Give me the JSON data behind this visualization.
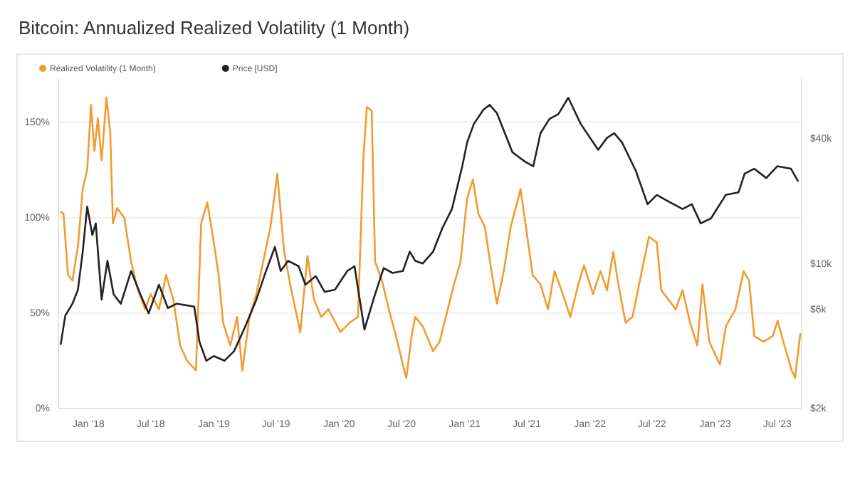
{
  "chart_data": {
    "type": "line",
    "title": "Bitcoin: Annualized Realized Volatility (1 Month)",
    "xlim": [
      "2017-10-05",
      "2023-09-10"
    ],
    "xticks": [
      {
        "value": "2018-01-01",
        "label": "Jan '18"
      },
      {
        "value": "2018-07-01",
        "label": "Jul '18"
      },
      {
        "value": "2019-01-01",
        "label": "Jan '19"
      },
      {
        "value": "2019-07-01",
        "label": "Jul '19"
      },
      {
        "value": "2020-01-01",
        "label": "Jan '20"
      },
      {
        "value": "2020-07-01",
        "label": "Jul '20"
      },
      {
        "value": "2021-01-01",
        "label": "Jan '21"
      },
      {
        "value": "2021-07-01",
        "label": "Jul '21"
      },
      {
        "value": "2022-01-01",
        "label": "Jan '22"
      },
      {
        "value": "2022-07-01",
        "label": "Jul '22"
      },
      {
        "value": "2023-01-01",
        "label": "Jan '23"
      },
      {
        "value": "2023-07-01",
        "label": "Jul '23"
      }
    ],
    "ylim": [
      0,
      173
    ],
    "yticks": [
      {
        "value": 0,
        "label": "0%"
      },
      {
        "value": 50,
        "label": "50%"
      },
      {
        "value": 100,
        "label": "100%"
      },
      {
        "value": 150,
        "label": "150%"
      }
    ],
    "y2lim": [
      2000,
      78000
    ],
    "y2ticks": [
      {
        "value": 2000,
        "label": "$2k"
      },
      {
        "value": 6000,
        "label": "$6k"
      },
      {
        "value": 10000,
        "label": "$10k"
      },
      {
        "value": 40000,
        "label": "$40k"
      }
    ],
    "log": "y2",
    "grid": "y",
    "legend": "top left",
    "line_style": "solid",
    "marker": "none",
    "series": [
      {
        "name": "Realized Volatility (1 Month)",
        "color": "#f29b30",
        "x": [
          "2017-10-12",
          "2017-10-20",
          "2017-11-02",
          "2017-11-15",
          "2017-12-01",
          "2017-12-15",
          "2017-12-28",
          "2018-01-08",
          "2018-01-18",
          "2018-01-28",
          "2018-02-08",
          "2018-02-22",
          "2018-03-05",
          "2018-03-13",
          "2018-03-25",
          "2018-04-15",
          "2018-05-05",
          "2018-05-25",
          "2018-06-15",
          "2018-07-01",
          "2018-07-25",
          "2018-08-15",
          "2018-09-05",
          "2018-09-25",
          "2018-10-15",
          "2018-11-10",
          "2018-11-25",
          "2018-12-13",
          "2019-01-01",
          "2019-01-15",
          "2019-01-28",
          "2019-02-18",
          "2019-03-10",
          "2019-03-25",
          "2019-04-15",
          "2019-05-05",
          "2019-05-25",
          "2019-06-15",
          "2019-07-05",
          "2019-07-25",
          "2019-08-15",
          "2019-09-10",
          "2019-10-01",
          "2019-10-20",
          "2019-11-10",
          "2019-12-01",
          "2020-01-05",
          "2020-02-01",
          "2020-02-25",
          "2020-03-12",
          "2020-03-22",
          "2020-04-05",
          "2020-04-15",
          "2020-05-05",
          "2020-05-25",
          "2020-06-15",
          "2020-07-05",
          "2020-07-15",
          "2020-08-01",
          "2020-08-10",
          "2020-09-01",
          "2020-10-01",
          "2020-10-20",
          "2020-11-10",
          "2020-12-01",
          "2020-12-20",
          "2021-01-08",
          "2021-01-25",
          "2021-02-10",
          "2021-03-01",
          "2021-03-20",
          "2021-04-05",
          "2021-04-25",
          "2021-05-15",
          "2021-06-13",
          "2021-07-01",
          "2021-07-18",
          "2021-08-10",
          "2021-09-01",
          "2021-09-20",
          "2021-10-10",
          "2021-11-05",
          "2021-11-28",
          "2021-12-15",
          "2022-01-10",
          "2022-02-01",
          "2022-02-20",
          "2022-03-10",
          "2022-03-25",
          "2022-04-15",
          "2022-05-05",
          "2022-05-30",
          "2022-06-22",
          "2022-07-15",
          "2022-07-28",
          "2022-08-18",
          "2022-09-08",
          "2022-09-28",
          "2022-10-20",
          "2022-11-10",
          "2022-11-25",
          "2022-12-15",
          "2023-01-15",
          "2023-02-01",
          "2023-03-01",
          "2023-03-25",
          "2023-04-10",
          "2023-04-25",
          "2023-05-22",
          "2023-06-18",
          "2023-07-02",
          "2023-07-22",
          "2023-08-12",
          "2023-08-22",
          "2023-08-31",
          "2023-09-06"
        ],
        "values": [
          103,
          102,
          70,
          67,
          85,
          115,
          125,
          159,
          135,
          152,
          130,
          163,
          145,
          97,
          105,
          100,
          77,
          62,
          52,
          60,
          52,
          70,
          57,
          33,
          25,
          20,
          97,
          108,
          87,
          70,
          45,
          33,
          48,
          20,
          48,
          60,
          77,
          95,
          123,
          82,
          62,
          40,
          80,
          57,
          48,
          52,
          40,
          45,
          48,
          132,
          158,
          156,
          77,
          67,
          52,
          38,
          23,
          16,
          40,
          48,
          43,
          30,
          35,
          50,
          65,
          77,
          110,
          120,
          102,
          95,
          72,
          55,
          72,
          95,
          115,
          92,
          70,
          65,
          52,
          72,
          62,
          48,
          65,
          75,
          60,
          72,
          62,
          82,
          65,
          45,
          48,
          70,
          90,
          87,
          62,
          57,
          52,
          62,
          45,
          33,
          65,
          35,
          23,
          43,
          52,
          72,
          67,
          38,
          35,
          38,
          46,
          33,
          20,
          16,
          30,
          39
        ]
      },
      {
        "name": "Price [USD]",
        "color": "#222222",
        "axis": "y2",
        "x": [
          "2017-10-12",
          "2017-10-25",
          "2017-11-15",
          "2017-12-01",
          "2017-12-15",
          "2017-12-28",
          "2018-01-12",
          "2018-01-22",
          "2018-02-08",
          "2018-02-25",
          "2018-03-15",
          "2018-04-05",
          "2018-05-05",
          "2018-06-01",
          "2018-06-25",
          "2018-07-25",
          "2018-08-20",
          "2018-09-15",
          "2018-11-05",
          "2018-11-20",
          "2018-12-10",
          "2019-01-01",
          "2019-02-01",
          "2019-03-01",
          "2019-04-01",
          "2019-05-05",
          "2019-05-28",
          "2019-06-28",
          "2019-07-15",
          "2019-08-05",
          "2019-09-05",
          "2019-09-25",
          "2019-10-25",
          "2019-11-20",
          "2019-12-20",
          "2020-01-25",
          "2020-02-15",
          "2020-03-15",
          "2020-04-10",
          "2020-05-10",
          "2020-06-05",
          "2020-07-05",
          "2020-07-25",
          "2020-08-10",
          "2020-09-01",
          "2020-10-01",
          "2020-10-28",
          "2020-11-25",
          "2020-12-25",
          "2021-01-08",
          "2021-01-28",
          "2021-02-25",
          "2021-03-15",
          "2021-04-05",
          "2021-05-20",
          "2021-06-25",
          "2021-07-20",
          "2021-08-10",
          "2021-09-05",
          "2021-10-01",
          "2021-10-30",
          "2021-12-05",
          "2022-01-25",
          "2022-02-20",
          "2022-03-13",
          "2022-04-05",
          "2022-05-15",
          "2022-06-18",
          "2022-07-15",
          "2022-08-20",
          "2022-09-28",
          "2022-10-25",
          "2022-11-20",
          "2022-12-20",
          "2023-02-01",
          "2023-03-10",
          "2023-03-28",
          "2023-04-25",
          "2023-05-30",
          "2023-07-01",
          "2023-08-10",
          "2023-08-30"
        ],
        "values": [
          4090,
          5600,
          6400,
          7480,
          11400,
          18800,
          13700,
          15600,
          6700,
          10300,
          7100,
          6400,
          9200,
          7100,
          5750,
          7900,
          6100,
          6400,
          6200,
          4200,
          3400,
          3580,
          3400,
          3780,
          4900,
          6700,
          8700,
          12000,
          9200,
          10300,
          9700,
          7900,
          8700,
          7300,
          7480,
          9200,
          9700,
          4800,
          6700,
          9500,
          9000,
          9200,
          11400,
          10300,
          10000,
          11400,
          14800,
          18300,
          29400,
          38200,
          47100,
          55100,
          58100,
          53000,
          34400,
          31000,
          29400,
          42400,
          49700,
          52400,
          62900,
          47100,
          35300,
          40300,
          42400,
          38200,
          27900,
          19300,
          21400,
          19800,
          18300,
          19300,
          15600,
          16500,
          21400,
          22000,
          27100,
          28600,
          25800,
          29400,
          28600,
          25000
        ]
      }
    ]
  }
}
